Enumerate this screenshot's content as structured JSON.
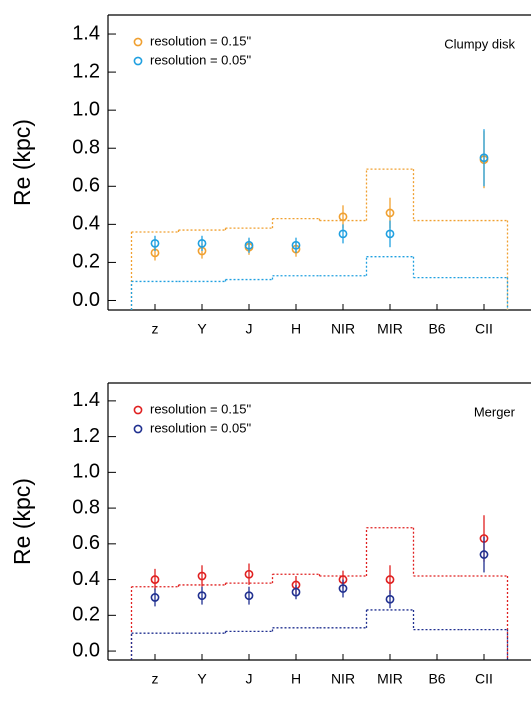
{
  "chart_data": [
    {
      "type": "errorbar",
      "y_label": "Re (kpc)",
      "annotation": "Clumpy disk",
      "categories": [
        "z",
        "Y",
        "J",
        "H",
        "NIR",
        "MIR",
        "B6",
        "CII"
      ],
      "ylim": [
        -0.05,
        1.5
      ],
      "yticks": [
        {
          "value": 0,
          "label": "0.0"
        },
        0.2,
        0.4,
        0.6,
        0.8,
        {
          "value": 1,
          "label": "1.0"
        },
        1.2,
        1.4
      ],
      "legend": "upper left",
      "series": [
        {
          "name": "resolution = 0.15\"",
          "color": "#f0a030",
          "values": [
            0.25,
            0.26,
            0.28,
            0.27,
            0.44,
            0.46,
            null,
            0.74
          ],
          "errors": [
            0.04,
            0.04,
            0.04,
            0.04,
            0.06,
            0.08,
            null,
            0.15
          ]
        },
        {
          "name": "resolution = 0.05\"",
          "color": "#20a0e0",
          "values": [
            0.3,
            0.3,
            0.29,
            0.29,
            0.35,
            0.35,
            null,
            0.75
          ],
          "errors": [
            0.04,
            0.04,
            0.04,
            0.04,
            0.05,
            0.07,
            null,
            0.15
          ]
        }
      ],
      "step_lines": [
        {
          "color": "#f0a030",
          "values": [
            0.36,
            0.37,
            0.38,
            0.43,
            0.42,
            0.69,
            0.42,
            0.42
          ]
        },
        {
          "color": "#20a0e0",
          "values": [
            0.1,
            0.1,
            0.11,
            0.13,
            0.13,
            0.23,
            0.12,
            0.12
          ]
        }
      ]
    },
    {
      "type": "errorbar",
      "y_label": "Re (kpc)",
      "annotation": "Merger",
      "categories": [
        "z",
        "Y",
        "J",
        "H",
        "NIR",
        "MIR",
        "B6",
        "CII"
      ],
      "ylim": [
        -0.05,
        1.5
      ],
      "yticks": [
        {
          "value": 0,
          "label": "0.0"
        },
        0.2,
        0.4,
        0.6,
        0.8,
        {
          "value": 1,
          "label": "1.0"
        },
        1.2,
        1.4
      ],
      "legend": "upper left",
      "series": [
        {
          "name": "resolution = 0.15\"",
          "color": "#e02020",
          "values": [
            0.4,
            0.42,
            0.43,
            0.37,
            0.4,
            0.4,
            null,
            0.63
          ],
          "errors": [
            0.06,
            0.06,
            0.06,
            0.05,
            0.05,
            0.08,
            null,
            0.13
          ]
        },
        {
          "name": "resolution = 0.05\"",
          "color": "#203090",
          "values": [
            0.3,
            0.31,
            0.31,
            0.33,
            0.35,
            0.29,
            null,
            0.54
          ],
          "errors": [
            0.05,
            0.05,
            0.05,
            0.04,
            0.05,
            0.05,
            null,
            0.1
          ]
        }
      ],
      "step_lines": [
        {
          "color": "#e02020",
          "values": [
            0.36,
            0.37,
            0.38,
            0.43,
            0.42,
            0.69,
            0.42,
            0.42
          ]
        },
        {
          "color": "#203090",
          "values": [
            0.1,
            0.1,
            0.11,
            0.13,
            0.13,
            0.23,
            0.12,
            0.12
          ]
        }
      ]
    }
  ]
}
